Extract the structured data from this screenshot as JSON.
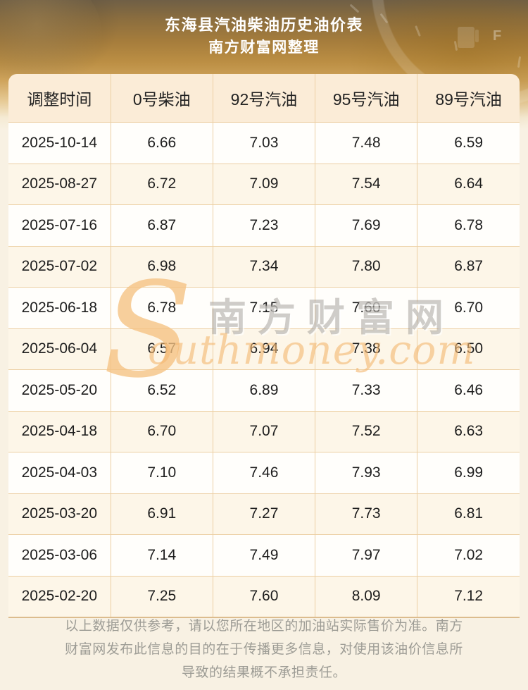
{
  "header": {
    "title_line1": "东海县汽油柴油历史油价表",
    "title_line2": "南方财富网整理",
    "gauge_label": "F"
  },
  "table": {
    "headers": [
      "调整时间",
      "0号柴油",
      "92号汽油",
      "95号汽油",
      "89号汽油"
    ],
    "rows": [
      [
        "2025-10-14",
        "6.66",
        "7.03",
        "7.48",
        "6.59"
      ],
      [
        "2025-08-27",
        "6.72",
        "7.09",
        "7.54",
        "6.64"
      ],
      [
        "2025-07-16",
        "6.87",
        "7.23",
        "7.69",
        "6.78"
      ],
      [
        "2025-07-02",
        "6.98",
        "7.34",
        "7.80",
        "6.87"
      ],
      [
        "2025-06-18",
        "6.78",
        "7.15",
        "7.60",
        "6.70"
      ],
      [
        "2025-06-04",
        "6.57",
        "6.94",
        "7.38",
        "6.50"
      ],
      [
        "2025-05-20",
        "6.52",
        "6.89",
        "7.33",
        "6.46"
      ],
      [
        "2025-04-18",
        "6.70",
        "7.07",
        "7.52",
        "6.63"
      ],
      [
        "2025-04-03",
        "7.10",
        "7.46",
        "7.93",
        "6.99"
      ],
      [
        "2025-03-20",
        "6.91",
        "7.27",
        "7.73",
        "6.81"
      ],
      [
        "2025-03-06",
        "7.14",
        "7.49",
        "7.97",
        "7.02"
      ],
      [
        "2025-02-20",
        "7.25",
        "7.60",
        "8.09",
        "7.12"
      ]
    ]
  },
  "watermark": {
    "initial": "S",
    "cn": "南方财富网",
    "en": "outhmoney.com"
  },
  "footer": {
    "line1": "以上数据仅供参考，请以您所在地区的加油站实际售价为准。南方",
    "line2": "财富网发布此信息的目的在于传播更多信息，对使用该油价信息所",
    "line3": "导致的结果概不承担责任。"
  },
  "colors": {
    "banner_gold": "#bc8f44",
    "table_header_bg": "#fbecd7",
    "row_stripe_bg": "#fdf6e8",
    "cell_border": "#eccfa3",
    "watermark_orange": "#f3b873",
    "footer_text": "#9d9c95"
  }
}
